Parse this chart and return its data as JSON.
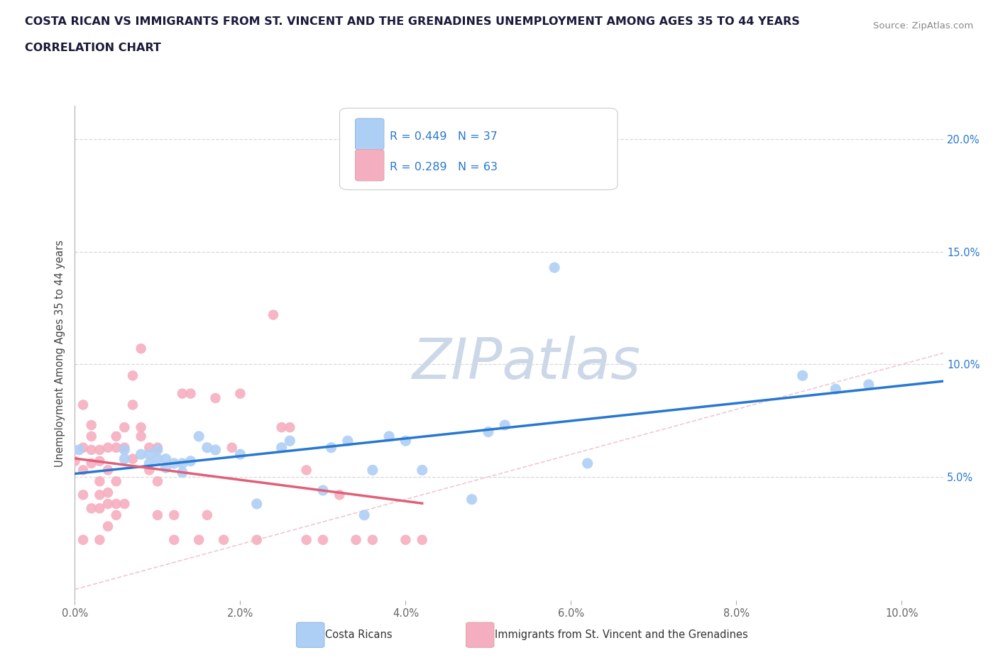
{
  "title_line1": "COSTA RICAN VS IMMIGRANTS FROM ST. VINCENT AND THE GRENADINES UNEMPLOYMENT AMONG AGES 35 TO 44 YEARS",
  "title_line2": "CORRELATION CHART",
  "source": "Source: ZipAtlas.com",
  "ylabel": "Unemployment Among Ages 35 to 44 years",
  "xlim": [
    0.0,
    0.105
  ],
  "ylim": [
    -0.005,
    0.215
  ],
  "blue_R": 0.449,
  "blue_N": 37,
  "pink_R": 0.289,
  "pink_N": 63,
  "blue_color": "#aecff5",
  "pink_color": "#f5aec0",
  "blue_line_color": "#2878d0",
  "pink_line_color": "#e0607a",
  "diagonal_color": "#f0c8d0",
  "grid_color": "#d8d8d8",
  "background_color": "#ffffff",
  "watermark": "ZIPatlas",
  "watermark_color": "#ccd8e8",
  "legend_label_blue": "Costa Ricans",
  "legend_label_pink": "Immigrants from St. Vincent and the Grenadines",
  "blue_points_x": [
    0.0005,
    0.006,
    0.006,
    0.008,
    0.009,
    0.009,
    0.01,
    0.01,
    0.011,
    0.011,
    0.012,
    0.013,
    0.013,
    0.014,
    0.015,
    0.016,
    0.017,
    0.02,
    0.022,
    0.025,
    0.026,
    0.03,
    0.031,
    0.033,
    0.035,
    0.036,
    0.038,
    0.04,
    0.042,
    0.048,
    0.05,
    0.052,
    0.058,
    0.062,
    0.088,
    0.092,
    0.096
  ],
  "blue_points_y": [
    0.062,
    0.062,
    0.058,
    0.06,
    0.06,
    0.056,
    0.062,
    0.058,
    0.058,
    0.054,
    0.056,
    0.056,
    0.052,
    0.057,
    0.068,
    0.063,
    0.062,
    0.06,
    0.038,
    0.063,
    0.066,
    0.044,
    0.063,
    0.066,
    0.033,
    0.053,
    0.068,
    0.066,
    0.053,
    0.04,
    0.07,
    0.073,
    0.143,
    0.056,
    0.095,
    0.089,
    0.091
  ],
  "pink_points_x": [
    0.0,
    0.001,
    0.001,
    0.001,
    0.001,
    0.001,
    0.002,
    0.002,
    0.002,
    0.002,
    0.002,
    0.003,
    0.003,
    0.003,
    0.003,
    0.003,
    0.003,
    0.004,
    0.004,
    0.004,
    0.004,
    0.004,
    0.005,
    0.005,
    0.005,
    0.005,
    0.005,
    0.006,
    0.006,
    0.006,
    0.007,
    0.007,
    0.007,
    0.008,
    0.008,
    0.008,
    0.009,
    0.009,
    0.01,
    0.01,
    0.01,
    0.012,
    0.012,
    0.013,
    0.014,
    0.015,
    0.016,
    0.017,
    0.018,
    0.019,
    0.02,
    0.022,
    0.024,
    0.025,
    0.026,
    0.028,
    0.028,
    0.03,
    0.032,
    0.034,
    0.036,
    0.04,
    0.042
  ],
  "pink_points_y": [
    0.057,
    0.022,
    0.042,
    0.053,
    0.063,
    0.082,
    0.036,
    0.056,
    0.062,
    0.068,
    0.073,
    0.022,
    0.036,
    0.042,
    0.048,
    0.057,
    0.062,
    0.028,
    0.038,
    0.043,
    0.053,
    0.063,
    0.033,
    0.038,
    0.048,
    0.063,
    0.068,
    0.038,
    0.063,
    0.072,
    0.058,
    0.082,
    0.095,
    0.068,
    0.072,
    0.107,
    0.053,
    0.063,
    0.033,
    0.048,
    0.063,
    0.022,
    0.033,
    0.087,
    0.087,
    0.022,
    0.033,
    0.085,
    0.022,
    0.063,
    0.087,
    0.022,
    0.122,
    0.072,
    0.072,
    0.022,
    0.053,
    0.022,
    0.042,
    0.022,
    0.022,
    0.022,
    0.022
  ]
}
